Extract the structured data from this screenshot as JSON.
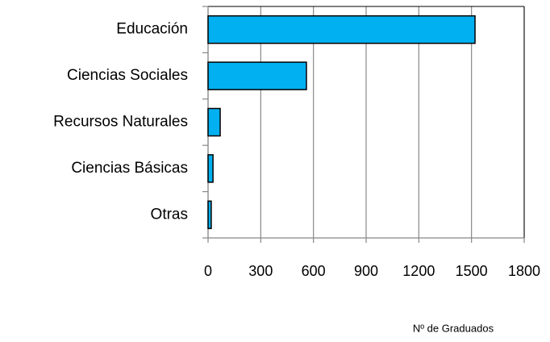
{
  "chart_data": {
    "type": "bar",
    "orientation": "horizontal",
    "categories": [
      "Educación",
      "Ciencias Sociales",
      "Recursos Naturales",
      "Ciencias Básicas",
      "Otras"
    ],
    "values": [
      1520,
      560,
      69,
      28,
      18
    ],
    "color": "#00b0f0",
    "xlabel": "Nº de Graduados",
    "xlim": [
      0,
      1800
    ],
    "xticks": [
      0,
      300,
      600,
      900,
      1200,
      1500,
      1800
    ],
    "grid": true
  }
}
